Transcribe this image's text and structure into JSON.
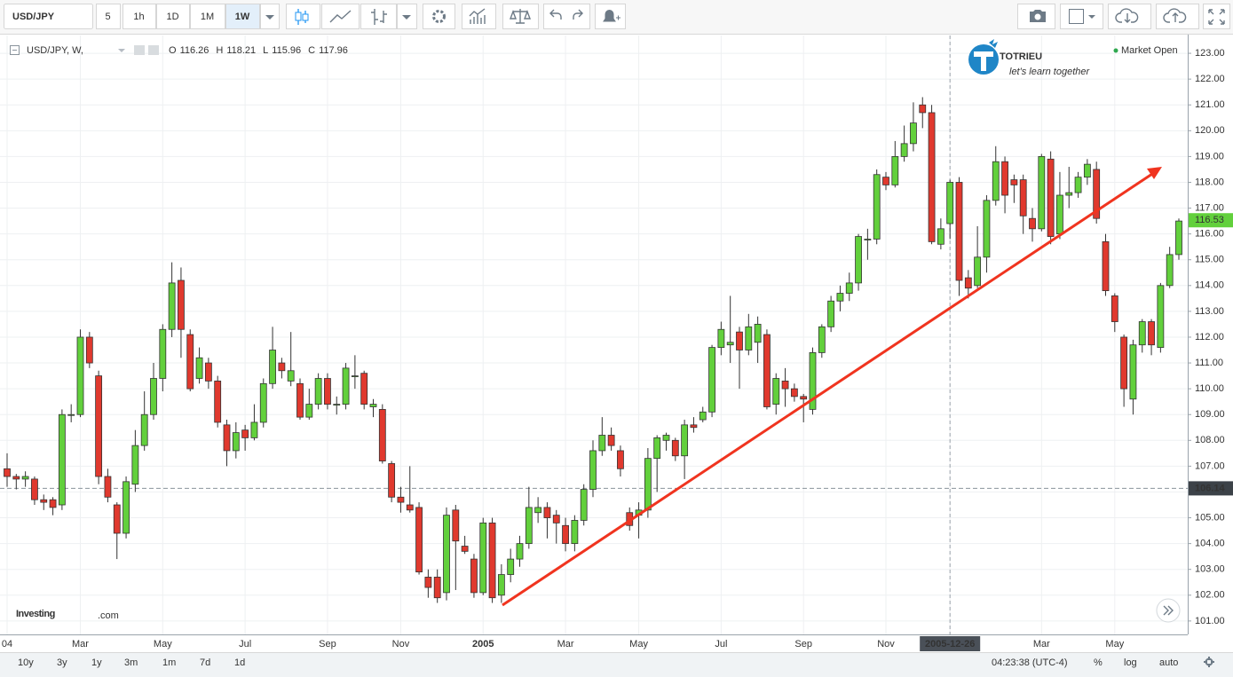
{
  "toolbar": {
    "symbol": "USD/JPY",
    "intervals": [
      "5",
      "1h",
      "1D",
      "1M",
      "1W"
    ]
  },
  "legend": {
    "symbol": "USD/JPY, W,",
    "ohlc": [
      {
        "key": "O",
        "value": "116.26"
      },
      {
        "key": "H",
        "value": "118.21"
      },
      {
        "key": "L",
        "value": "115.96"
      },
      {
        "key": "C",
        "value": "117.96"
      }
    ]
  },
  "market_status": "Market Open",
  "logo": {
    "name": "TOTRIEU",
    "tagline": "let's learn together"
  },
  "watermark": {
    "brand": "Investing",
    "suffix": ".com"
  },
  "bottom_bar": {
    "ranges": [
      "10y",
      "3y",
      "1y",
      "3m",
      "1m",
      "7d",
      "1d"
    ],
    "time": "04:23:38 (UTC-4)",
    "options": [
      "%",
      "log",
      "auto"
    ]
  },
  "chart_data": {
    "type": "candlestick",
    "up_color": "#62d03c",
    "down_color": "#e0392e",
    "categories": [
      "04",
      null,
      null,
      null,
      null,
      null,
      null,
      null,
      "Mar",
      null,
      null,
      null,
      null,
      null,
      null,
      null,
      null,
      "May",
      null,
      null,
      null,
      null,
      null,
      null,
      null,
      null,
      "Jul",
      null,
      null,
      null,
      null,
      null,
      null,
      null,
      null,
      "Sep",
      null,
      null,
      null,
      null,
      null,
      null,
      null,
      "Nov",
      null,
      null,
      null,
      null,
      null,
      null,
      null,
      null,
      "2005",
      null,
      null,
      null,
      null,
      null,
      null,
      null,
      null,
      "Mar",
      null,
      null,
      null,
      null,
      null,
      null,
      null,
      "May",
      null,
      null,
      null,
      null,
      null,
      null,
      null,
      null,
      "Jul",
      null,
      null,
      null,
      null,
      null,
      null,
      null,
      null,
      "Sep",
      null,
      null,
      null,
      null,
      null,
      null,
      null,
      null,
      "Nov",
      null,
      null,
      null,
      null,
      null,
      null,
      "2005-12-26",
      null,
      null,
      null,
      null,
      null,
      null,
      null,
      null,
      null,
      "Mar",
      null,
      null,
      null,
      null,
      null,
      null,
      null,
      "May",
      null,
      null,
      null,
      null,
      null,
      null,
      null
    ],
    "highlight_category": 103,
    "open": [
      106.9,
      106.6,
      106.5,
      106.5,
      105.7,
      105.7,
      105.5,
      109.0,
      109.0,
      112.0,
      110.5,
      106.6,
      105.5,
      104.4,
      106.3,
      107.8,
      109.0,
      110.4,
      112.3,
      114.2,
      112.1,
      110.4,
      111.0,
      110.3,
      108.6,
      107.6,
      108.4,
      108.1,
      108.7,
      110.2,
      111.0,
      110.3,
      110.2,
      108.9,
      109.4,
      110.4,
      109.4,
      109.4,
      110.5,
      110.6,
      109.3,
      109.2,
      107.1,
      105.8,
      105.5,
      105.4,
      102.7,
      102.7,
      102.1,
      105.3,
      103.9,
      103.4,
      102.1,
      104.8,
      102.0,
      102.8,
      103.4,
      104.0,
      105.2,
      105.4,
      105.1,
      104.7,
      104.0,
      104.9,
      106.1,
      107.6,
      108.2,
      107.6,
      105.2,
      105.1,
      105.3,
      107.3,
      108.0,
      108.0,
      107.4,
      108.6,
      108.8,
      109.1,
      111.6,
      111.7,
      112.2,
      111.5,
      111.8,
      112.1,
      109.4,
      110.3,
      110.0,
      109.7,
      109.2,
      111.4,
      112.4,
      113.4,
      113.7,
      114.1,
      115.8,
      115.8,
      118.2,
      117.9,
      119.0,
      119.5,
      121.0,
      120.7,
      115.6,
      116.4,
      118.0,
      114.3,
      114.0,
      115.1,
      117.3,
      118.8,
      118.1,
      118.1,
      116.6,
      116.2,
      118.9,
      116.0,
      117.5,
      117.6,
      118.2,
      118.5,
      115.7,
      113.6,
      112.0,
      109.6,
      111.7,
      112.6,
      111.6,
      114.0,
      115.2
    ],
    "high": [
      107.5,
      106.7,
      106.8,
      106.6,
      105.9,
      105.8,
      109.2,
      109.4,
      112.3,
      112.2,
      110.7,
      106.9,
      105.6,
      106.6,
      108.4,
      109.9,
      111.0,
      112.5,
      114.9,
      114.7,
      112.3,
      111.6,
      111.2,
      110.5,
      108.8,
      108.7,
      108.6,
      109.4,
      110.4,
      112.4,
      111.2,
      112.2,
      110.4,
      110.0,
      110.6,
      110.6,
      109.7,
      111.0,
      111.3,
      110.7,
      109.6,
      109.4,
      107.2,
      106.2,
      107.0,
      105.6,
      103.0,
      103.0,
      105.4,
      105.5,
      104.3,
      103.6,
      105.0,
      105.0,
      103.2,
      103.8,
      104.3,
      106.2,
      105.8,
      105.6,
      105.3,
      105.0,
      105.1,
      106.3,
      108.0,
      108.9,
      108.5,
      107.8,
      105.4,
      105.6,
      107.7,
      108.2,
      108.3,
      108.1,
      108.8,
      108.9,
      109.3,
      111.7,
      112.6,
      113.6,
      112.4,
      112.9,
      112.8,
      112.3,
      110.6,
      110.8,
      110.2,
      109.8,
      111.6,
      112.5,
      113.6,
      114.0,
      114.5,
      116.0,
      116.2,
      118.5,
      118.4,
      119.6,
      120.2,
      121.1,
      121.3,
      121.0,
      116.6,
      118.1,
      118.2,
      114.6,
      116.3,
      117.5,
      119.4,
      119.0,
      118.3,
      118.3,
      117.0,
      119.1,
      119.2,
      118.4,
      118.6,
      118.4,
      118.9,
      118.8,
      116.0,
      113.7,
      112.1,
      111.9,
      112.7,
      112.7,
      114.1,
      115.5,
      116.6
    ],
    "low": [
      106.2,
      106.1,
      106.2,
      105.5,
      105.3,
      105.1,
      105.3,
      108.7,
      108.9,
      110.8,
      106.3,
      105.6,
      103.4,
      104.2,
      106.0,
      107.6,
      108.8,
      109.9,
      112.0,
      111.2,
      109.9,
      110.2,
      110.0,
      108.5,
      107.0,
      107.3,
      107.6,
      108.0,
      108.5,
      110.0,
      110.4,
      110.1,
      108.8,
      108.8,
      109.2,
      109.2,
      109.0,
      109.2,
      110.0,
      109.2,
      108.9,
      107.1,
      105.6,
      105.2,
      105.2,
      102.8,
      101.9,
      101.7,
      101.8,
      102.2,
      103.6,
      101.9,
      102.0,
      101.7,
      101.7,
      102.5,
      103.1,
      103.8,
      104.8,
      104.2,
      104.0,
      103.7,
      103.7,
      104.7,
      105.8,
      107.4,
      107.6,
      106.6,
      104.5,
      104.2,
      105.0,
      106.0,
      107.6,
      107.2,
      106.5,
      108.3,
      108.7,
      108.9,
      111.3,
      111.0,
      110.0,
      111.3,
      111.0,
      109.2,
      109.0,
      109.3,
      109.5,
      108.7,
      109.0,
      111.2,
      112.2,
      113.0,
      113.4,
      113.8,
      115.0,
      115.6,
      117.7,
      117.8,
      118.8,
      119.2,
      120.1,
      115.6,
      115.4,
      115.8,
      113.6,
      113.5,
      113.9,
      114.5,
      117.1,
      116.8,
      117.2,
      116.0,
      115.7,
      116.1,
      115.6,
      115.8,
      117.0,
      117.4,
      117.9,
      116.4,
      113.6,
      112.2,
      109.3,
      109.0,
      111.4,
      111.3,
      111.4,
      113.9,
      115.0
    ],
    "close": [
      106.6,
      106.5,
      106.6,
      105.7,
      105.6,
      105.4,
      109.0,
      109.0,
      112.0,
      111.0,
      106.6,
      105.8,
      104.4,
      106.4,
      107.8,
      109.0,
      110.4,
      112.3,
      114.1,
      112.3,
      110.0,
      111.2,
      110.3,
      108.7,
      107.6,
      108.3,
      108.1,
      108.7,
      110.2,
      111.5,
      110.7,
      110.7,
      108.9,
      109.4,
      110.4,
      109.4,
      109.4,
      110.8,
      110.5,
      109.4,
      109.4,
      107.2,
      105.8,
      105.6,
      105.3,
      102.9,
      102.3,
      101.9,
      105.1,
      104.1,
      103.7,
      102.1,
      104.8,
      101.9,
      102.8,
      103.4,
      104.0,
      105.4,
      105.4,
      105.0,
      104.8,
      104.0,
      104.9,
      106.1,
      107.6,
      108.2,
      107.8,
      106.9,
      104.7,
      105.3,
      107.3,
      108.1,
      108.2,
      107.4,
      108.6,
      108.5,
      109.1,
      111.6,
      112.3,
      111.8,
      111.5,
      112.4,
      112.5,
      109.3,
      110.4,
      110.0,
      109.7,
      109.6,
      111.4,
      112.4,
      113.4,
      113.7,
      114.1,
      115.9,
      115.8,
      118.3,
      117.9,
      119.0,
      119.5,
      120.3,
      120.7,
      115.7,
      116.2,
      118.0,
      114.2,
      113.9,
      115.1,
      117.3,
      118.8,
      117.5,
      117.9,
      116.7,
      116.2,
      119.0,
      115.9,
      117.5,
      117.6,
      118.2,
      118.7,
      116.6,
      113.8,
      112.6,
      110.0,
      111.7,
      112.6,
      111.7,
      114.0,
      115.2,
      116.5
    ],
    "ylim": [
      100.48,
      123.69
    ],
    "yticks": [
      {
        "value": 101,
        "label": "101.00"
      },
      {
        "value": 102,
        "label": "102.00"
      },
      {
        "value": 103,
        "label": "103.00"
      },
      {
        "value": 104,
        "label": "104.00"
      },
      {
        "value": 105,
        "label": "105.00"
      },
      {
        "value": 106,
        "label": "106.00"
      },
      {
        "value": 107,
        "label": "107.00"
      },
      {
        "value": 108,
        "label": "108.00"
      },
      {
        "value": 109,
        "label": "109.00"
      },
      {
        "value": 110,
        "label": "110.00"
      },
      {
        "value": 111,
        "label": "111.00"
      },
      {
        "value": 112,
        "label": "112.00"
      },
      {
        "value": 113,
        "label": "113.00"
      },
      {
        "value": 114,
        "label": "114.00"
      },
      {
        "value": 115,
        "label": "115.00"
      },
      {
        "value": 116,
        "label": "116.00"
      },
      {
        "value": 117,
        "label": "117.00"
      },
      {
        "value": 118,
        "label": "118.00"
      },
      {
        "value": 119,
        "label": "119.00"
      },
      {
        "value": 120,
        "label": "120.00"
      },
      {
        "value": 121,
        "label": "121.00"
      },
      {
        "value": 122,
        "label": "122.00"
      },
      {
        "value": 123,
        "label": "123.00"
      }
    ],
    "grid": true,
    "last_price": 116.53,
    "last_price_color": "#62d03c",
    "ref_price": 106.14
  }
}
